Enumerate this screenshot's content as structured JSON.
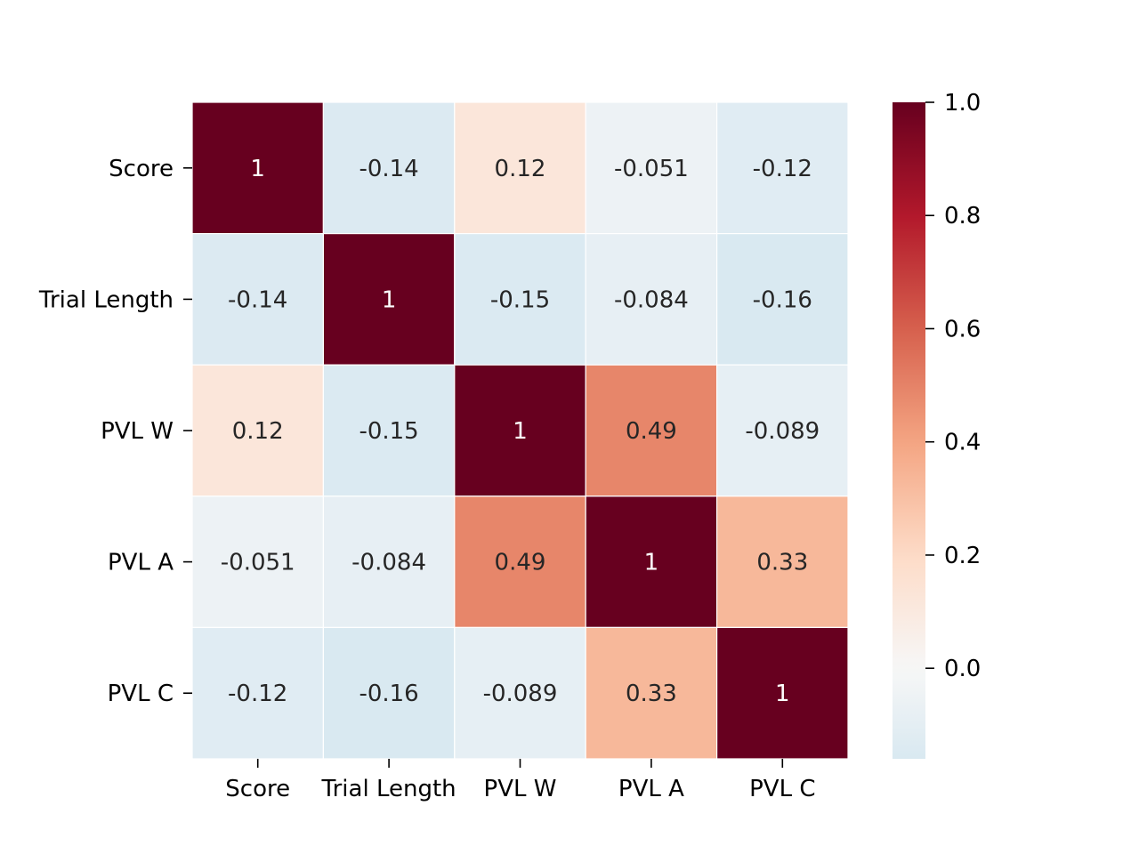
{
  "chart_data": {
    "type": "heatmap",
    "title": "",
    "xlabel": "",
    "ylabel": "",
    "x_labels": [
      "Score",
      "Trial Length",
      "PVL W",
      "PVL A",
      "PVL C"
    ],
    "y_labels": [
      "Score",
      "Trial Length",
      "PVL W",
      "PVL A",
      "PVL C"
    ],
    "values": [
      [
        1,
        -0.14,
        0.12,
        -0.051,
        -0.12
      ],
      [
        -0.14,
        1,
        -0.15,
        -0.084,
        -0.16
      ],
      [
        0.12,
        -0.15,
        1,
        0.49,
        -0.089
      ],
      [
        -0.051,
        -0.084,
        0.49,
        1,
        0.33
      ],
      [
        -0.12,
        -0.16,
        -0.089,
        0.33,
        1
      ]
    ],
    "annotations": [
      [
        "1",
        "-0.14",
        "0.12",
        "-0.051",
        "-0.12"
      ],
      [
        "-0.14",
        "1",
        "-0.15",
        "-0.084",
        "-0.16"
      ],
      [
        "0.12",
        "-0.15",
        "1",
        "0.49",
        "-0.089"
      ],
      [
        "-0.051",
        "-0.084",
        "0.49",
        "1",
        "0.33"
      ],
      [
        "-0.12",
        "-0.16",
        "-0.089",
        "0.33",
        "1"
      ]
    ],
    "colormap": "RdBu_r",
    "colorbar": {
      "range": [
        -0.16,
        1.0
      ],
      "ticks": [
        0.0,
        0.2,
        0.4,
        0.6,
        0.8,
        1.0
      ],
      "tick_labels": [
        "0.0",
        "0.2",
        "0.4",
        "0.6",
        "0.8",
        "1.0"
      ]
    },
    "grid_line_color": "#ffffff",
    "legend": "colorbar-right"
  }
}
